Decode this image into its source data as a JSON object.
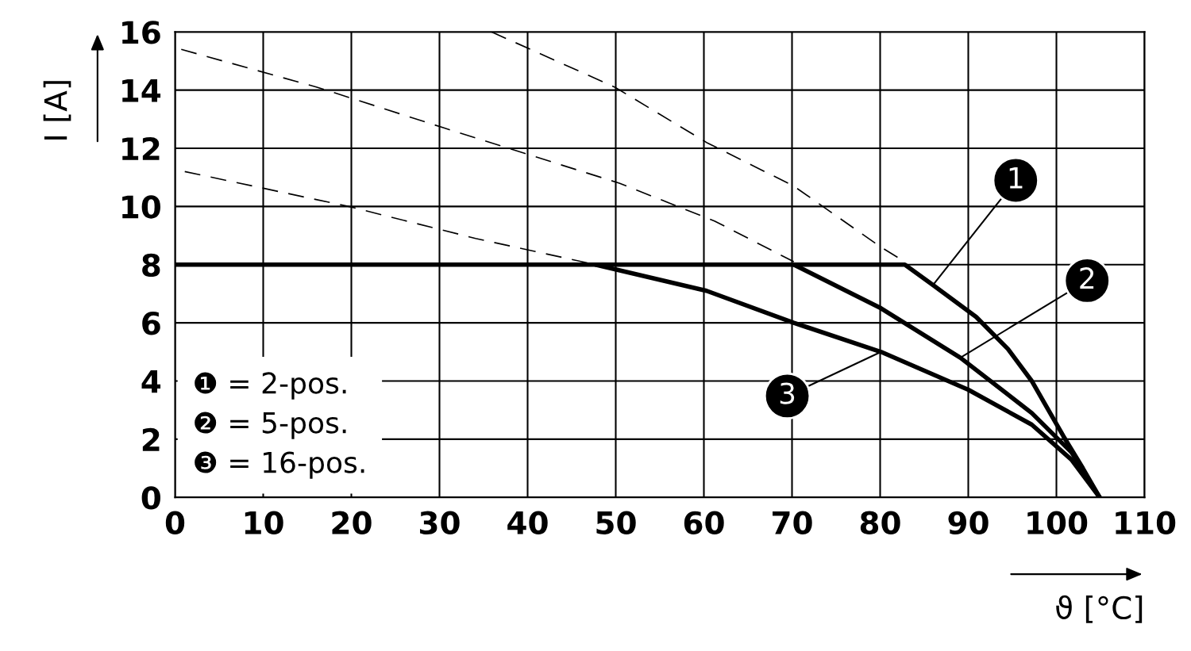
{
  "chart_data": {
    "type": "line",
    "xlabel": "ϑ [°C]",
    "ylabel": "I [A]",
    "xlim": [
      0,
      110
    ],
    "ylim": [
      0,
      16
    ],
    "xticks": [
      0,
      10,
      20,
      30,
      40,
      50,
      60,
      70,
      80,
      90,
      100,
      110
    ],
    "yticks": [
      0,
      2,
      4,
      6,
      8,
      10,
      12,
      14,
      16
    ],
    "grid": true,
    "marker": "none",
    "series": [
      {
        "name": "1",
        "color": "#000000",
        "line_style": "solid",
        "x": [
          0,
          82.8,
          86,
          90.9,
          94.5,
          97.2,
          100.8,
          103,
          104.9
        ],
        "values": [
          8,
          8,
          7.3,
          6.2,
          5.1,
          4.0,
          2.1,
          1.0,
          0
        ]
      },
      {
        "name": "2",
        "color": "#000000",
        "line_style": "solid",
        "x": [
          70.2,
          80.1,
          89.1,
          97.2,
          101.7,
          104.9
        ],
        "values": [
          8,
          6.5,
          4.8,
          2.9,
          1.55,
          0
        ]
      },
      {
        "name": "3",
        "color": "#000000",
        "line_style": "solid",
        "x": [
          47.7,
          60.3,
          70.2,
          80.1,
          90,
          97.2,
          101.7,
          104.9
        ],
        "values": [
          8,
          7.1,
          6.0,
          5.0,
          3.7,
          2.5,
          1.3,
          0
        ]
      },
      {
        "color": "#000000",
        "line_style": "dashed",
        "x": [
          35.9,
          49.9,
          60.3,
          70.2,
          80.1,
          82.8
        ],
        "values": [
          16,
          14.1,
          12.2,
          10.7,
          8.6,
          8.1
        ]
      },
      {
        "color": "#000000",
        "line_style": "dashed",
        "x": [
          0.7,
          16.1,
          30.5,
          50.4,
          61.2,
          70.2
        ],
        "values": [
          15.4,
          14.1,
          12.7,
          10.8,
          9.5,
          8.1
        ]
      },
      {
        "color": "#000000",
        "line_style": "dashed",
        "x": [
          1.1,
          19.7,
          34.1,
          47.7
        ],
        "values": [
          11.2,
          10.0,
          8.9,
          8.0
        ]
      }
    ],
    "annotations": [
      "❶ = 2-pos.",
      "❷ = 5-pos.",
      "❸ = 16-pos."
    ]
  }
}
